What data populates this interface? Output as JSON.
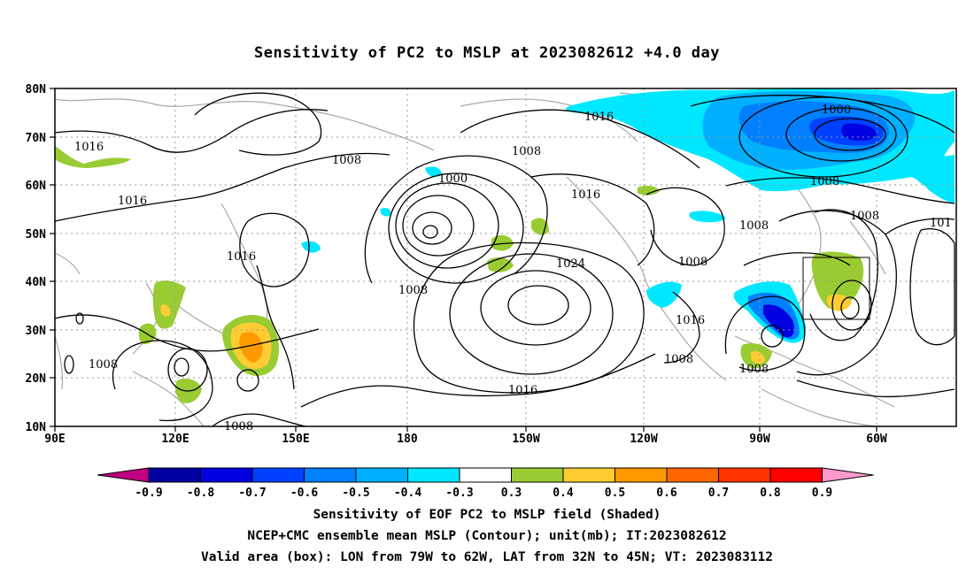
{
  "title": "Sensitivity of PC2 to MSLP at 2023082612 +4.0 day",
  "axes": {
    "lon_labels": [
      "90E",
      "120E",
      "150E",
      "180",
      "150W",
      "120W",
      "90W",
      "60W"
    ],
    "lat_labels": [
      "80N",
      "70N",
      "60N",
      "50N",
      "40N",
      "30N",
      "20N",
      "10N"
    ]
  },
  "contour_labels": [
    "1016",
    "1008",
    "1016",
    "1016",
    "1008",
    "1008",
    "1000",
    "1008",
    "1024",
    "1008",
    "1016",
    "1016",
    "1008",
    "1016",
    "1016",
    "1008",
    "1008",
    "1000",
    "1008",
    "1008",
    "101",
    "1008"
  ],
  "colorbar": {
    "labels": [
      "-0.9",
      "-0.8",
      "-0.7",
      "-0.6",
      "-0.5",
      "-0.4",
      "-0.3",
      "0.3",
      "0.4",
      "0.5",
      "0.6",
      "0.7",
      "0.8",
      "0.9"
    ],
    "colors": [
      "#c00080",
      "#0000a0",
      "#0000e0",
      "#0040ff",
      "#0080ff",
      "#00b0ff",
      "#00e8ff",
      "#ffffff",
      "#99cc33",
      "#ffcc33",
      "#ff9900",
      "#ff6600",
      "#ff3300",
      "#ff0000",
      "#ff99cc"
    ]
  },
  "captions": {
    "line1": "Sensitivity of EOF PC2 to MSLP field (Shaded)",
    "line2": "NCEP+CMC ensemble mean MSLP (Contour); unit(mb); IT:2023082612",
    "line3": "Valid area (box): LON from 79W to 62W, LAT from 32N to 45N; VT: 2023083112"
  }
}
